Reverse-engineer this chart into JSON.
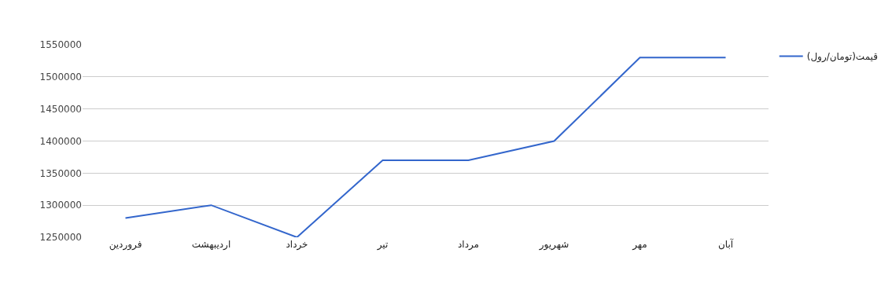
{
  "chart_data": {
    "type": "line",
    "categories": [
      "فروردین",
      "اردیبهشت",
      "خرداد",
      "تیر",
      "مرداد",
      "شهریور",
      "مهر",
      "آبان"
    ],
    "series": [
      {
        "name": "قیمت(تومان/رول)",
        "color": "#3366cc",
        "values": [
          1280000,
          1300000,
          1250000,
          1370000,
          1370000,
          1400000,
          1530000,
          1530000
        ]
      }
    ],
    "ylim": [
      1250000,
      1550000
    ],
    "yticks": [
      1250000,
      1300000,
      1350000,
      1400000,
      1450000,
      1500000,
      1550000
    ],
    "grid": "y",
    "legend": "top right",
    "marker": "none",
    "line_style": "solid"
  }
}
